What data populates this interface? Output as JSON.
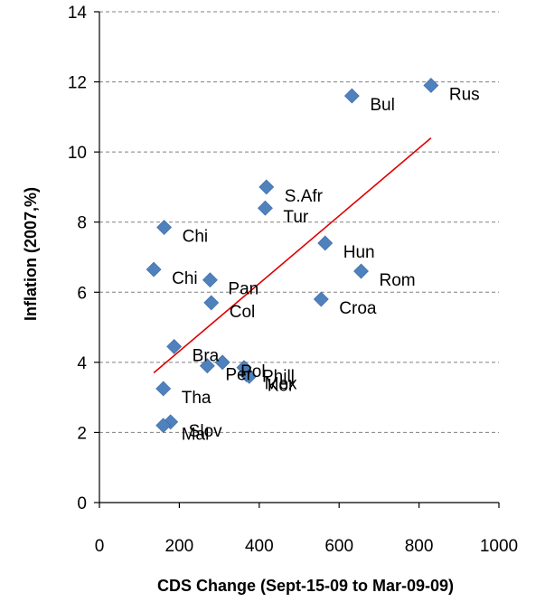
{
  "chart_data": {
    "type": "scatter",
    "title": "",
    "xlabel": "CDS Change (Sept-15-09  to Mar-09-09)",
    "ylabel": "Inflation (2007,%)",
    "xlim": [
      0,
      1000
    ],
    "ylim": [
      0,
      14
    ],
    "xticks": [
      0,
      200,
      400,
      600,
      800,
      1000
    ],
    "yticks": [
      0,
      2,
      4,
      6,
      8,
      10,
      12,
      14
    ],
    "grid": "horizontal dashed",
    "marker": "diamond",
    "colors": {
      "marker": "#4f81bd",
      "trendline": "#e00000"
    },
    "points": [
      {
        "label": "Rus",
        "x": 830,
        "y": 11.9
      },
      {
        "label": "Bul",
        "x": 632,
        "y": 11.6
      },
      {
        "label": "S.Afr",
        "x": 418,
        "y": 9.0
      },
      {
        "label": "Tur",
        "x": 415,
        "y": 8.4
      },
      {
        "label": "Chi",
        "x": 162,
        "y": 7.85
      },
      {
        "label": "Hun",
        "x": 565,
        "y": 7.4
      },
      {
        "label": "Rom",
        "x": 655,
        "y": 6.6
      },
      {
        "label": "Chi",
        "x": 136,
        "y": 6.65
      },
      {
        "label": "Pan",
        "x": 277,
        "y": 6.35
      },
      {
        "label": "Col",
        "x": 280,
        "y": 5.7
      },
      {
        "label": "Croa",
        "x": 555,
        "y": 5.8
      },
      {
        "label": "Bra",
        "x": 187,
        "y": 4.45
      },
      {
        "label": "Per",
        "x": 270,
        "y": 3.9
      },
      {
        "label": "Pol",
        "x": 308,
        "y": 4.0
      },
      {
        "label": "Phill",
        "x": 362,
        "y": 3.85
      },
      {
        "label": "Mex",
        "x": 368,
        "y": 3.65
      },
      {
        "label": "Kor",
        "x": 375,
        "y": 3.6
      },
      {
        "label": "Tha",
        "x": 160,
        "y": 3.25
      },
      {
        "label": "Slov",
        "x": 178,
        "y": 2.3
      },
      {
        "label": "Mal",
        "x": 160,
        "y": 2.2
      }
    ],
    "trendline": {
      "x1": 136,
      "y1": 3.7,
      "x2": 830,
      "y2": 10.4
    }
  }
}
